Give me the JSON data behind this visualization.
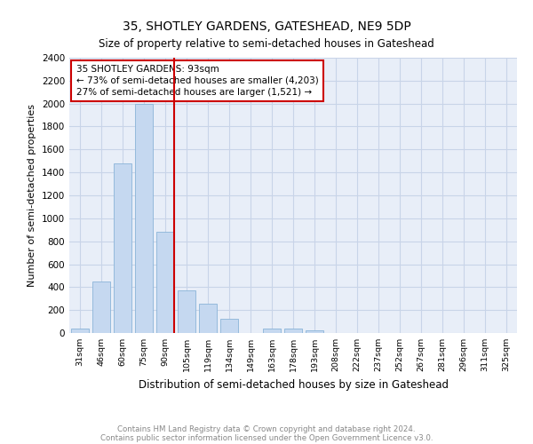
{
  "title1": "35, SHOTLEY GARDENS, GATESHEAD, NE9 5DP",
  "title2": "Size of property relative to semi-detached houses in Gateshead",
  "xlabel": "Distribution of semi-detached houses by size in Gateshead",
  "ylabel": "Number of semi-detached properties",
  "categories": [
    "31sqm",
    "46sqm",
    "60sqm",
    "75sqm",
    "90sqm",
    "105sqm",
    "119sqm",
    "134sqm",
    "149sqm",
    "163sqm",
    "178sqm",
    "193sqm",
    "208sqm",
    "222sqm",
    "237sqm",
    "252sqm",
    "267sqm",
    "281sqm",
    "296sqm",
    "311sqm",
    "325sqm"
  ],
  "values": [
    40,
    450,
    1480,
    2000,
    880,
    370,
    255,
    125,
    0,
    35,
    35,
    20,
    0,
    0,
    0,
    0,
    0,
    0,
    0,
    0,
    0
  ],
  "bar_color": "#c5d8f0",
  "bar_edge_color": "#8ab4d8",
  "vline_color": "#cc0000",
  "annotation_title": "35 SHOTLEY GARDENS: 93sqm",
  "annotation_line1": "← 73% of semi-detached houses are smaller (4,203)",
  "annotation_line2": "27% of semi-detached houses are larger (1,521) →",
  "annotation_box_facecolor": "#ffffff",
  "annotation_box_edgecolor": "#cc0000",
  "grid_color": "#c8d4e8",
  "background_color": "#e8eef8",
  "ylim": [
    0,
    2400
  ],
  "yticks": [
    0,
    200,
    400,
    600,
    800,
    1000,
    1200,
    1400,
    1600,
    1800,
    2000,
    2200,
    2400
  ],
  "footnote1": "Contains HM Land Registry data © Crown copyright and database right 2024.",
  "footnote2": "Contains public sector information licensed under the Open Government Licence v3.0."
}
